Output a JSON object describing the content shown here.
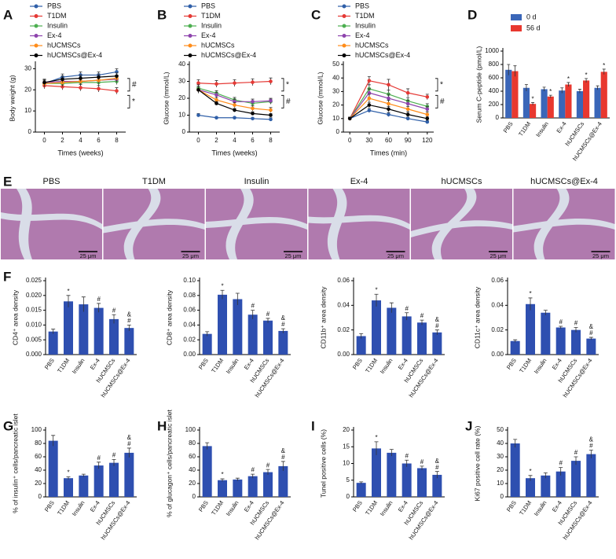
{
  "chart_data": [
    {
      "panel": "A",
      "type": "line",
      "ylabel": "Body weight (g)",
      "xlabel": "Times (weeks)",
      "x": [
        0,
        2,
        4,
        6,
        8
      ],
      "xlim": [
        -1,
        9
      ],
      "xticks": [
        0,
        2,
        4,
        6,
        8
      ],
      "ylim": [
        0,
        32
      ],
      "yticks": [
        0,
        10,
        20,
        30
      ],
      "annotations": [
        "#",
        "*"
      ],
      "series": [
        {
          "name": "PBS",
          "color": "#2f5fa8",
          "values": [
            23,
            26,
            27,
            27,
            28.5
          ],
          "errors": [
            1.5,
            1.5,
            1.5,
            1.5,
            1.5
          ]
        },
        {
          "name": "T1DM",
          "color": "#e53935",
          "values": [
            22,
            21.5,
            21,
            20.5,
            19.5
          ],
          "errors": [
            1.5,
            1.5,
            1.5,
            1.5,
            1.5
          ]
        },
        {
          "name": "Insulin",
          "color": "#4caf50",
          "values": [
            23,
            23,
            23.5,
            23.5,
            24
          ],
          "errors": [
            1.5,
            1.5,
            1.5,
            1.5,
            1.5
          ]
        },
        {
          "name": "Ex-4",
          "color": "#8e44ad",
          "values": [
            23.5,
            24,
            24,
            24.5,
            25
          ],
          "errors": [
            1.5,
            1.5,
            1.5,
            1.5,
            1.5
          ]
        },
        {
          "name": "hUCMSCs",
          "color": "#ff8c1a",
          "values": [
            23,
            23.5,
            24,
            24.5,
            25.5
          ],
          "errors": [
            1.5,
            1.5,
            1.5,
            1.5,
            1.5
          ]
        },
        {
          "name": "hUCMSCs@Ex-4",
          "color": "#000000",
          "values": [
            23.5,
            25,
            25.5,
            26,
            26.5
          ],
          "errors": [
            1.5,
            1.5,
            1.5,
            1.5,
            1.5
          ]
        }
      ]
    },
    {
      "panel": "B",
      "type": "line",
      "ylabel": "Glucose (mmol/L)",
      "xlabel": "Times (weeks)",
      "x": [
        0,
        2,
        4,
        6,
        8
      ],
      "xlim": [
        -1,
        9
      ],
      "xticks": [
        0,
        2,
        4,
        6,
        8
      ],
      "ylim": [
        0,
        40
      ],
      "yticks": [
        0,
        10,
        20,
        30,
        40
      ],
      "annotations": [
        "*",
        "#"
      ],
      "series": [
        {
          "name": "PBS",
          "color": "#2f5fa8",
          "values": [
            10,
            8.5,
            8.5,
            8,
            7.5
          ],
          "errors": [
            1,
            0.5,
            0.5,
            0.5,
            1
          ]
        },
        {
          "name": "T1DM",
          "color": "#e53935",
          "values": [
            29,
            28.5,
            29,
            29.5,
            30
          ],
          "errors": [
            2,
            2,
            2,
            2,
            2
          ]
        },
        {
          "name": "Insulin",
          "color": "#4caf50",
          "values": [
            26,
            23,
            19,
            17,
            18
          ],
          "errors": [
            2,
            1.5,
            1.5,
            1.5,
            1.5
          ]
        },
        {
          "name": "Ex-4",
          "color": "#8e44ad",
          "values": [
            25,
            22,
            18,
            18,
            18.5
          ],
          "errors": [
            2,
            1.5,
            1.5,
            1.5,
            1.5
          ]
        },
        {
          "name": "hUCMSCs",
          "color": "#ff8c1a",
          "values": [
            25,
            19,
            16,
            14,
            13
          ],
          "errors": [
            2,
            1.5,
            1.5,
            1.5,
            1.5
          ]
        },
        {
          "name": "hUCMSCs@Ex-4",
          "color": "#000000",
          "values": [
            25,
            17,
            13,
            11,
            10
          ],
          "errors": [
            2,
            1,
            1,
            1,
            1
          ]
        }
      ]
    },
    {
      "panel": "C",
      "type": "line",
      "ylabel": "Glucose (mmol/L)",
      "xlabel": "Times (min)",
      "x": [
        0,
        30,
        60,
        90,
        120
      ],
      "xlim": [
        -10,
        130
      ],
      "xticks": [
        0,
        30,
        60,
        90,
        120
      ],
      "ylim": [
        0,
        50
      ],
      "yticks": [
        0,
        10,
        20,
        30,
        40,
        50
      ],
      "annotations": [
        "*",
        "#"
      ],
      "series": [
        {
          "name": "PBS",
          "color": "#2f5fa8",
          "values": [
            10,
            16,
            13,
            10,
            7.5
          ],
          "errors": [
            1,
            1.5,
            1.5,
            1,
            1
          ]
        },
        {
          "name": "T1DM",
          "color": "#e53935",
          "values": [
            10,
            38,
            35,
            29,
            26
          ],
          "errors": [
            1,
            3,
            4,
            3,
            2
          ]
        },
        {
          "name": "Insulin",
          "color": "#4caf50",
          "values": [
            10,
            32,
            28,
            23,
            19
          ],
          "errors": [
            1,
            3,
            3,
            2.5,
            2
          ]
        },
        {
          "name": "Ex-4",
          "color": "#8e44ad",
          "values": [
            10,
            29,
            25,
            21,
            17
          ],
          "errors": [
            1,
            3,
            3,
            2.5,
            2
          ]
        },
        {
          "name": "hUCMSCs",
          "color": "#ff8c1a",
          "values": [
            10,
            25,
            21,
            17,
            13
          ],
          "errors": [
            1,
            3,
            2.5,
            2,
            2
          ]
        },
        {
          "name": "hUCMSCs@Ex-4",
          "color": "#000000",
          "values": [
            10,
            20,
            17,
            13,
            10
          ],
          "errors": [
            1,
            2,
            2,
            2,
            1.5
          ]
        }
      ]
    },
    {
      "panel": "D",
      "type": "grouped-bar",
      "ylabel": "Serum C-peptide (pmol/L)",
      "categories": [
        "PBS",
        "T1DM",
        "Insulin",
        "Ex-4",
        "hUCMSCs",
        "hUCMSCs@Ex-4"
      ],
      "ylim": [
        0,
        1000
      ],
      "yticks": [
        0,
        200,
        400,
        600,
        800,
        1000
      ],
      "sig": [
        null,
        "*",
        "*",
        "*",
        "*",
        "*"
      ],
      "series": [
        {
          "name": "0 d",
          "color": "#3a66b8",
          "values": [
            720,
            450,
            430,
            410,
            400,
            450
          ],
          "errors": [
            80,
            50,
            30,
            40,
            30,
            30
          ]
        },
        {
          "name": "56 d",
          "color": "#e8382f",
          "values": [
            700,
            210,
            320,
            500,
            560,
            690
          ],
          "errors": [
            80,
            20,
            20,
            30,
            30,
            40
          ]
        }
      ]
    },
    {
      "panel": "F",
      "type": "bar",
      "ylabel": "CD4⁺ area density",
      "color": "#2e4fb0",
      "categories": [
        "PBS",
        "T1DM",
        "Insulin",
        "Ex-4",
        "hUCMSCs",
        "hUCMSCs@Ex-4"
      ],
      "values": [
        0.0078,
        0.018,
        0.017,
        0.0158,
        0.012,
        0.009
      ],
      "errors": [
        0.0008,
        0.002,
        0.0025,
        0.0015,
        0.0015,
        0.001
      ],
      "ylim": [
        0,
        0.025
      ],
      "yticks": [
        {
          "value": 0,
          "label": "0.000"
        },
        0.005,
        {
          "value": 0.01,
          "label": "0.010"
        },
        0.015,
        {
          "value": 0.02,
          "label": "0.020"
        },
        0.025
      ],
      "sig": [
        null,
        [
          "*"
        ],
        null,
        [
          "#"
        ],
        [
          "#"
        ],
        [
          "&",
          "#"
        ]
      ]
    },
    {
      "type": "bar",
      "ylabel": "CD8⁺ area density",
      "color": "#2e4fb0",
      "categories": [
        "PBS",
        "T1DM",
        "Insulin",
        "Ex-4",
        "hUCMSCs",
        "hUCMSCs@Ex-4"
      ],
      "values": [
        0.028,
        0.081,
        0.075,
        0.054,
        0.046,
        0.032
      ],
      "errors": [
        0.003,
        0.006,
        0.008,
        0.006,
        0.003,
        0.003
      ],
      "ylim": [
        0,
        0.1
      ],
      "yticks": [
        {
          "value": 0,
          "label": "0.00"
        },
        0.02,
        0.04,
        0.06,
        0.08,
        {
          "value": 0.1,
          "label": "0.10"
        }
      ],
      "sig": [
        null,
        [
          "*"
        ],
        null,
        [
          "#"
        ],
        [
          "#"
        ],
        [
          "&",
          "#"
        ]
      ]
    },
    {
      "type": "bar",
      "ylabel": "CD11b⁺ area density",
      "color": "#2e4fb0",
      "categories": [
        "PBS",
        "T1DM",
        "Insulin",
        "Ex-4",
        "hUCMSCs",
        "hUCMSCs@Ex-4"
      ],
      "values": [
        0.015,
        0.044,
        0.038,
        0.031,
        0.026,
        0.018
      ],
      "errors": [
        0.002,
        0.005,
        0.004,
        0.003,
        0.002,
        0.002
      ],
      "ylim": [
        0,
        0.06
      ],
      "yticks": [
        {
          "value": 0,
          "label": "0.00"
        },
        0.02,
        0.04,
        0.06
      ],
      "sig": [
        null,
        [
          "*"
        ],
        null,
        [
          "#"
        ],
        [
          "#"
        ],
        [
          "&",
          "#"
        ]
      ]
    },
    {
      "type": "bar",
      "ylabel": "CD11c⁺ area density",
      "color": "#2e4fb0",
      "categories": [
        "PBS",
        "T1DM",
        "Insulin",
        "Ex-4",
        "hUCMSCs",
        "hUCMSCs@Ex-4"
      ],
      "values": [
        0.011,
        0.041,
        0.034,
        0.022,
        0.02,
        0.013
      ],
      "errors": [
        0.001,
        0.005,
        0.002,
        0.001,
        0.002,
        0.001
      ],
      "ylim": [
        0,
        0.06
      ],
      "yticks": [
        {
          "value": 0,
          "label": "0.00"
        },
        0.02,
        0.04,
        0.06
      ],
      "sig": [
        null,
        [
          "*"
        ],
        null,
        [
          "#"
        ],
        [
          "#"
        ],
        [
          "&",
          "#"
        ]
      ]
    },
    {
      "panel": "G",
      "type": "bar",
      "ylabel": "% of insulin⁺ cells/pancreatic islet",
      "color": "#2e4fb0",
      "categories": [
        "PBS",
        "T1DM",
        "Insulin",
        "Ex-4",
        "hUCMSCs",
        "hUCMSCs@Ex-4"
      ],
      "values": [
        84,
        28,
        32,
        47,
        51,
        66
      ],
      "errors": [
        8,
        2,
        2,
        5,
        5,
        7
      ],
      "ylim": [
        0,
        100
      ],
      "yticks": [
        0,
        20,
        40,
        60,
        80,
        100
      ],
      "sig": [
        null,
        [
          "*"
        ],
        null,
        [
          "#"
        ],
        [
          "#"
        ],
        [
          "&",
          "#"
        ]
      ]
    },
    {
      "panel": "H",
      "type": "bar",
      "ylabel": "% of glucagon⁺ cells/pancreatic islet",
      "color": "#2e4fb0",
      "categories": [
        "PBS",
        "T1DM",
        "Insulin",
        "Ex-4",
        "hUCMSCs",
        "hUCMSCs@Ex-4"
      ],
      "values": [
        76,
        25,
        26,
        31,
        37,
        46
      ],
      "errors": [
        5,
        2,
        2,
        3,
        4,
        7
      ],
      "ylim": [
        0,
        100
      ],
      "yticks": [
        0,
        20,
        40,
        60,
        80,
        100
      ],
      "sig": [
        null,
        [
          "*"
        ],
        null,
        [
          "#"
        ],
        [
          "#"
        ],
        [
          "&",
          "#"
        ]
      ]
    },
    {
      "panel": "I",
      "type": "bar",
      "ylabel": "Tunel positive cells (%)",
      "color": "#2e4fb0",
      "categories": [
        "PBS",
        "T1DM",
        "Insulin",
        "Ex-4",
        "hUCMSCs",
        "hUCMSCs@Ex-4"
      ],
      "values": [
        4.2,
        14.5,
        13.2,
        10,
        8.6,
        6.6
      ],
      "errors": [
        0.3,
        2,
        1,
        1,
        0.6,
        1
      ],
      "ylim": [
        0,
        20
      ],
      "yticks": [
        0,
        5,
        10,
        15,
        20
      ],
      "sig": [
        null,
        [
          "*"
        ],
        null,
        [
          "#"
        ],
        [
          "#"
        ],
        [
          "&",
          "#"
        ]
      ]
    },
    {
      "panel": "J",
      "type": "bar",
      "ylabel": "Ki67 positive cell rate (%)",
      "color": "#2e4fb0",
      "categories": [
        "PBS",
        "T1DM",
        "Insulin",
        "Ex-4",
        "hUCMSCs",
        "hUCMSCs@Ex-4"
      ],
      "values": [
        40,
        14,
        16,
        19,
        27,
        32
      ],
      "errors": [
        3,
        2,
        2,
        3,
        3,
        3
      ],
      "ylim": [
        0,
        50
      ],
      "yticks": [
        0,
        10,
        20,
        30,
        40,
        50
      ],
      "sig": [
        null,
        [
          "*"
        ],
        null,
        [
          "#"
        ],
        [
          "#"
        ],
        [
          "&",
          "#"
        ]
      ]
    }
  ],
  "histology": {
    "panel": "E",
    "labels": [
      "PBS",
      "T1DM",
      "Insulin",
      "Ex-4",
      "hUCMSCs",
      "hUCMSCs@Ex-4"
    ],
    "scale_bar": "25 μm"
  }
}
